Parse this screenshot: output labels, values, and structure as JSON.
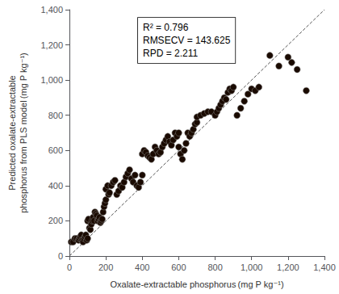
{
  "chart_data": {
    "type": "scatter",
    "xlabel": "Oxalate-extractable phosphorus (mg P kg⁻¹)",
    "ylabel": "Predicted oxalate-extractable\nphosphorus from PLS model (mg P kg⁻¹)",
    "annotation": "R² = 0.796\nRMSECV = 143.625\nRPD = 2.211",
    "xlim": [
      0,
      1400
    ],
    "ylim": [
      0,
      1400
    ],
    "xticks": [
      0,
      200,
      400,
      600,
      800,
      {
        "value": 1000,
        "label": "1,000"
      },
      {
        "value": 1200,
        "label": "1,200"
      },
      {
        "value": 1400,
        "label": "1,400"
      }
    ],
    "yticks": [
      0,
      200,
      400,
      600,
      800,
      {
        "value": 1000,
        "label": "1,000"
      },
      {
        "value": 1200,
        "label": "1,200"
      },
      {
        "value": 1400,
        "label": "1,400"
      }
    ],
    "grid": false,
    "series": [
      {
        "type": "line",
        "color": "#555555",
        "line_style": "dashed",
        "x": [
          0,
          1400
        ],
        "values": [
          0,
          1400
        ]
      },
      {
        "type": "scatter",
        "color": "#1a0a00",
        "marker": "circle",
        "x": [
          10,
          20,
          30,
          40,
          50,
          55,
          60,
          65,
          70,
          75,
          80,
          85,
          90,
          95,
          100,
          100,
          105,
          110,
          115,
          120,
          125,
          130,
          135,
          140,
          145,
          150,
          155,
          160,
          165,
          170,
          175,
          180,
          185,
          190,
          195,
          200,
          200,
          210,
          215,
          220,
          230,
          240,
          250,
          260,
          270,
          280,
          290,
          300,
          310,
          320,
          330,
          340,
          350,
          360,
          370,
          380,
          390,
          400,
          400,
          410,
          420,
          430,
          440,
          450,
          460,
          470,
          480,
          490,
          500,
          510,
          520,
          530,
          540,
          550,
          560,
          570,
          580,
          590,
          600,
          600,
          610,
          620,
          630,
          640,
          650,
          660,
          670,
          680,
          690,
          700,
          700,
          720,
          740,
          760,
          780,
          800,
          810,
          820,
          830,
          840,
          850,
          860,
          870,
          880,
          890,
          900,
          920,
          940,
          960,
          980,
          1000,
          1020,
          1040,
          1100,
          1150,
          1200,
          1220,
          1250,
          1300
        ],
        "values": [
          80,
          80,
          100,
          100,
          90,
          100,
          110,
          120,
          90,
          80,
          100,
          110,
          120,
          90,
          100,
          200,
          210,
          160,
          150,
          180,
          200,
          220,
          200,
          250,
          240,
          230,
          200,
          210,
          220,
          190,
          200,
          210,
          250,
          280,
          300,
          320,
          380,
          400,
          350,
          360,
          400,
          420,
          430,
          350,
          370,
          400,
          390,
          420,
          450,
          470,
          490,
          440,
          420,
          460,
          400,
          390,
          420,
          460,
          580,
          600,
          590,
          570,
          560,
          550,
          580,
          620,
          600,
          580,
          590,
          620,
          640,
          660,
          680,
          650,
          630,
          660,
          700,
          680,
          700,
          620,
          580,
          550,
          600,
          640,
          700,
          680,
          700,
          720,
          750,
          760,
          790,
          800,
          810,
          820,
          820,
          800,
          820,
          840,
          860,
          880,
          900,
          890,
          930,
          950,
          940,
          960,
          800,
          840,
          880,
          920,
          950,
          940,
          960,
          1140,
          1080,
          1130,
          1100,
          1060,
          940
        ]
      }
    ]
  }
}
